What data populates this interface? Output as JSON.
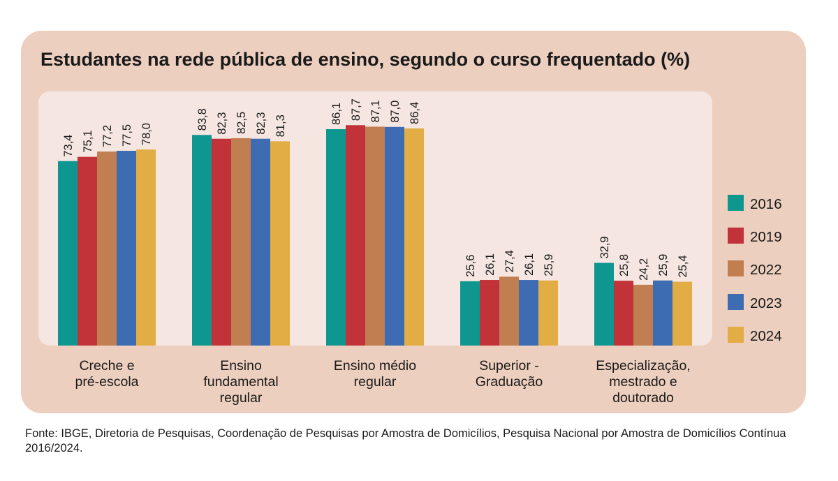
{
  "title": "Estudantes na rede pública de ensino, segundo o curso frequentado (%)",
  "source": "Fonte: IBGE, Diretoria de Pesquisas, Coordenação de Pesquisas por Amostra de Domicílios, Pesquisa Nacional por Amostra de Domicílios Contínua 2016/2024.",
  "chart_data": {
    "type": "bar",
    "title": "Estudantes na rede pública de ensino, segundo o curso frequentado (%)",
    "categories": [
      [
        "Creche e",
        "pré-escola"
      ],
      [
        "Ensino",
        "fundamental",
        "regular"
      ],
      [
        "Ensino médio",
        "regular"
      ],
      [
        "Superior -",
        "Graduação"
      ],
      [
        "Especialização,",
        "mestrado e",
        "doutorado"
      ]
    ],
    "series": [
      {
        "name": "2016",
        "color": "#0e9790",
        "values": [
          73.4,
          83.8,
          86.1,
          25.6,
          32.9
        ]
      },
      {
        "name": "2019",
        "color": "#c13338",
        "values": [
          75.1,
          82.3,
          87.7,
          26.1,
          25.8
        ]
      },
      {
        "name": "2022",
        "color": "#c17f51",
        "values": [
          77.2,
          82.5,
          87.1,
          27.4,
          24.2
        ]
      },
      {
        "name": "2023",
        "color": "#3d6cb3",
        "values": [
          77.5,
          82.3,
          87.0,
          26.1,
          25.9
        ]
      },
      {
        "name": "2024",
        "color": "#e3ad45",
        "values": [
          78.0,
          81.3,
          86.4,
          25.9,
          25.4
        ]
      }
    ],
    "value_labels": [
      [
        "73,4",
        "83,8",
        "86,1",
        "25,6",
        "32,9"
      ],
      [
        "75,1",
        "82,3",
        "87,7",
        "26,1",
        "25,8"
      ],
      [
        "77,2",
        "82,5",
        "87,1",
        "27,4",
        "24,2"
      ],
      [
        "77,5",
        "82,3",
        "87,0",
        "26,1",
        "25,9"
      ],
      [
        "78,0",
        "81,3",
        "86,4",
        "25,9",
        "25,4"
      ]
    ],
    "ylim": [
      0,
      100
    ],
    "grid": false,
    "legend_position": "right"
  }
}
